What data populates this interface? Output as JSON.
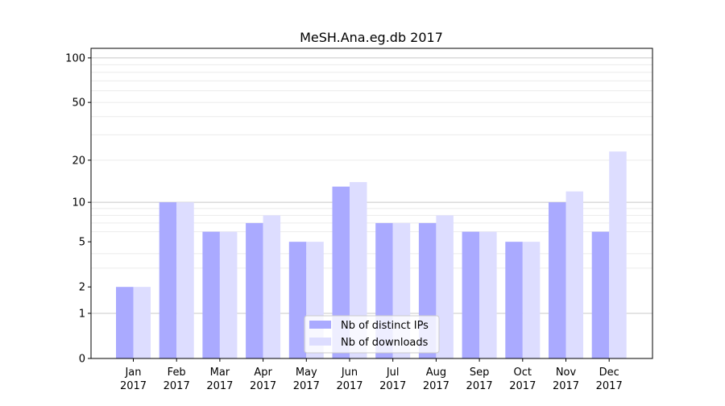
{
  "chart_data": {
    "type": "bar",
    "title": "MeSH.Ana.eg.db 2017",
    "xlabel": "",
    "ylabel": "",
    "y_scale": "log(1+y)",
    "ylim": [
      0,
      116
    ],
    "y_ticks": [
      0,
      1,
      2,
      5,
      10,
      20,
      50,
      100
    ],
    "grid": true,
    "legend_position": "bottom-center",
    "categories": [
      [
        "Jan",
        "2017"
      ],
      [
        "Feb",
        "2017"
      ],
      [
        "Mar",
        "2017"
      ],
      [
        "Apr",
        "2017"
      ],
      [
        "May",
        "2017"
      ],
      [
        "Jun",
        "2017"
      ],
      [
        "Jul",
        "2017"
      ],
      [
        "Aug",
        "2017"
      ],
      [
        "Sep",
        "2017"
      ],
      [
        "Oct",
        "2017"
      ],
      [
        "Nov",
        "2017"
      ],
      [
        "Dec",
        "2017"
      ]
    ],
    "series": [
      {
        "name": "Nb of distinct IPs",
        "color": "#aaaaff",
        "values": [
          2,
          10,
          6,
          7,
          5,
          13,
          7,
          7,
          6,
          5,
          10,
          6
        ]
      },
      {
        "name": "Nb of downloads",
        "color": "#ddddff",
        "values": [
          2,
          10,
          6,
          8,
          5,
          14,
          7,
          8,
          6,
          5,
          12,
          23
        ]
      }
    ]
  }
}
